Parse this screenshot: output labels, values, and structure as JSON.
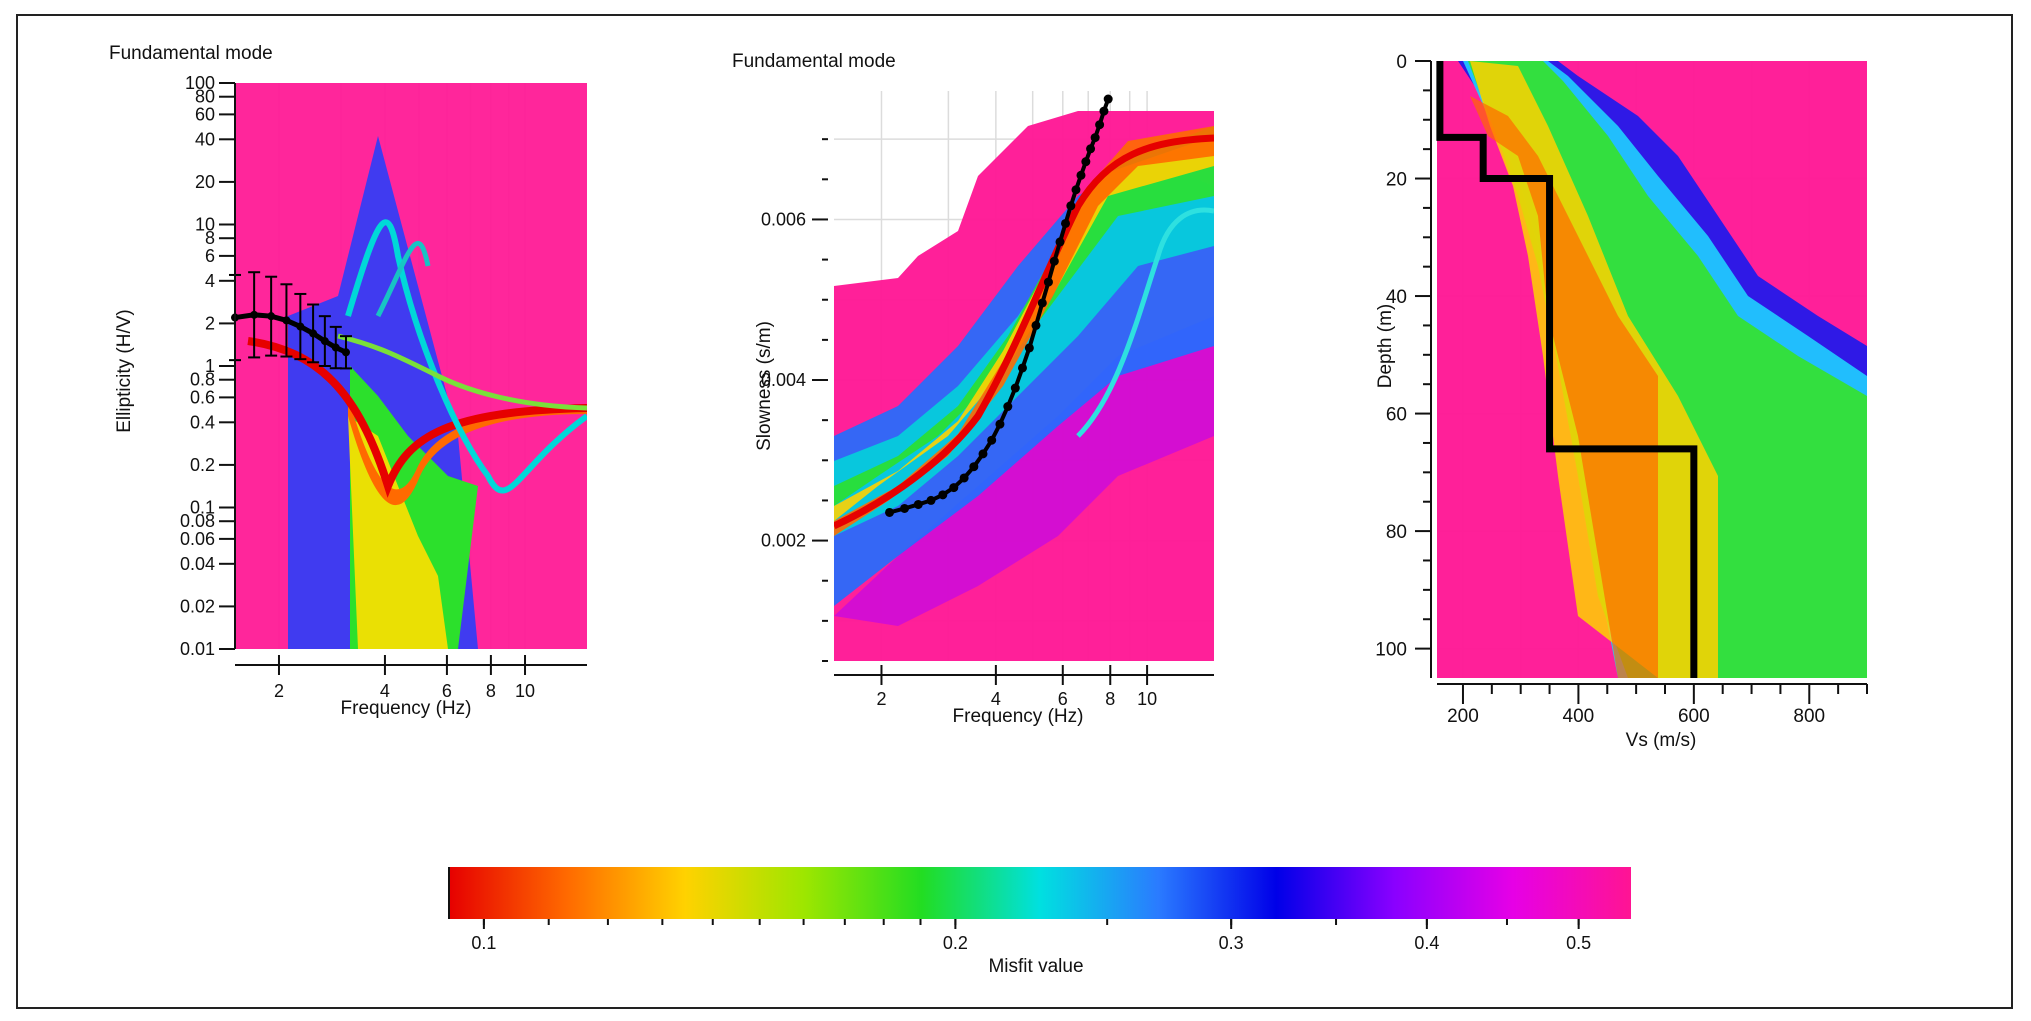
{
  "colormap": {
    "label": "Misfit value",
    "ticks": [
      "0.1",
      "0.2",
      "0.3",
      "0.4",
      "0.5"
    ],
    "stops": [
      "#e60000",
      "#ff6a00",
      "#ffd200",
      "#9ee600",
      "#22dd22",
      "#00e0e0",
      "#2a7bff",
      "#0000e8",
      "#8a00ff",
      "#e600e6",
      "#ff1493"
    ]
  },
  "chart_data": [
    {
      "type": "line",
      "title": "Fundamental mode",
      "xlabel": "Frequency (Hz)",
      "ylabel": "Ellipticity (H/V)",
      "x_scale": "log",
      "y_scale": "log",
      "xlim": [
        1.5,
        15
      ],
      "ylim": [
        0.01,
        100
      ],
      "x_ticks": [
        "2",
        "4",
        "6",
        "8",
        "10"
      ],
      "y_ticks": [
        "100",
        "80",
        "60",
        "40",
        "20",
        "10",
        "8",
        "6",
        "4",
        "2",
        "1",
        "0.8",
        "0.6",
        "0.4",
        "0.2",
        "0.1",
        "0.08",
        "0.06",
        "0.04",
        "0.02",
        "0.01"
      ],
      "series": [
        {
          "x": [
            1.5,
            1.7,
            1.9,
            2.1,
            2.3,
            2.5,
            2.7,
            2.9,
            3.1
          ],
          "y": [
            2.2,
            2.3,
            2.25,
            2.1,
            1.9,
            1.7,
            1.5,
            1.35,
            1.25
          ],
          "y_error": [
            2.0,
            2.0,
            1.9,
            1.8,
            1.7,
            1.6,
            1.5,
            1.4,
            1.3
          ],
          "color": "#000000"
        }
      ]
    },
    {
      "type": "line",
      "title": "Fundamental mode",
      "xlabel": "Frequency (Hz)",
      "ylabel": "Slowness (s/m)",
      "x_scale": "log",
      "xlim": [
        1.5,
        15
      ],
      "ylim": [
        0.0005,
        0.0076
      ],
      "x_ticks": [
        "2",
        "4",
        "6",
        "8",
        "10"
      ],
      "y_ticks": [
        "0.006",
        "0.004",
        "0.002"
      ],
      "series": [
        {
          "x": [
            2.1,
            2.3,
            2.5,
            2.7,
            2.9,
            3.1,
            3.3,
            3.5,
            3.7,
            3.9,
            4.1,
            4.3,
            4.5,
            4.7,
            4.9,
            5.1,
            5.3,
            5.5,
            5.7,
            5.9,
            6.1,
            6.3,
            6.5,
            6.7,
            6.9,
            7.1,
            7.3,
            7.5,
            7.7,
            7.9
          ],
          "y": [
            0.00235,
            0.0024,
            0.00245,
            0.0025,
            0.00257,
            0.00266,
            0.00278,
            0.00292,
            0.00308,
            0.00325,
            0.00345,
            0.00367,
            0.0039,
            0.00415,
            0.0044,
            0.00468,
            0.00496,
            0.00522,
            0.00548,
            0.00572,
            0.00595,
            0.00617,
            0.00637,
            0.00655,
            0.00672,
            0.00688,
            0.00702,
            0.00718,
            0.00735,
            0.0075
          ],
          "color": "#000000"
        }
      ]
    },
    {
      "type": "line",
      "title": "",
      "xlabel": "Vs (m/s)",
      "ylabel": "Depth (m)",
      "xlim": [
        155,
        900
      ],
      "ylim": [
        0,
        105
      ],
      "y_inverted": true,
      "x_ticks": [
        "200",
        "400",
        "600",
        "800"
      ],
      "y_ticks": [
        "0",
        "20",
        "40",
        "60",
        "80",
        "100"
      ],
      "series": [
        {
          "x": [
            160,
            160,
            235,
            235,
            350,
            350,
            600,
            600
          ],
          "y": [
            0,
            13,
            13,
            20,
            20,
            66,
            66,
            105
          ],
          "color": "#000000"
        }
      ]
    }
  ]
}
